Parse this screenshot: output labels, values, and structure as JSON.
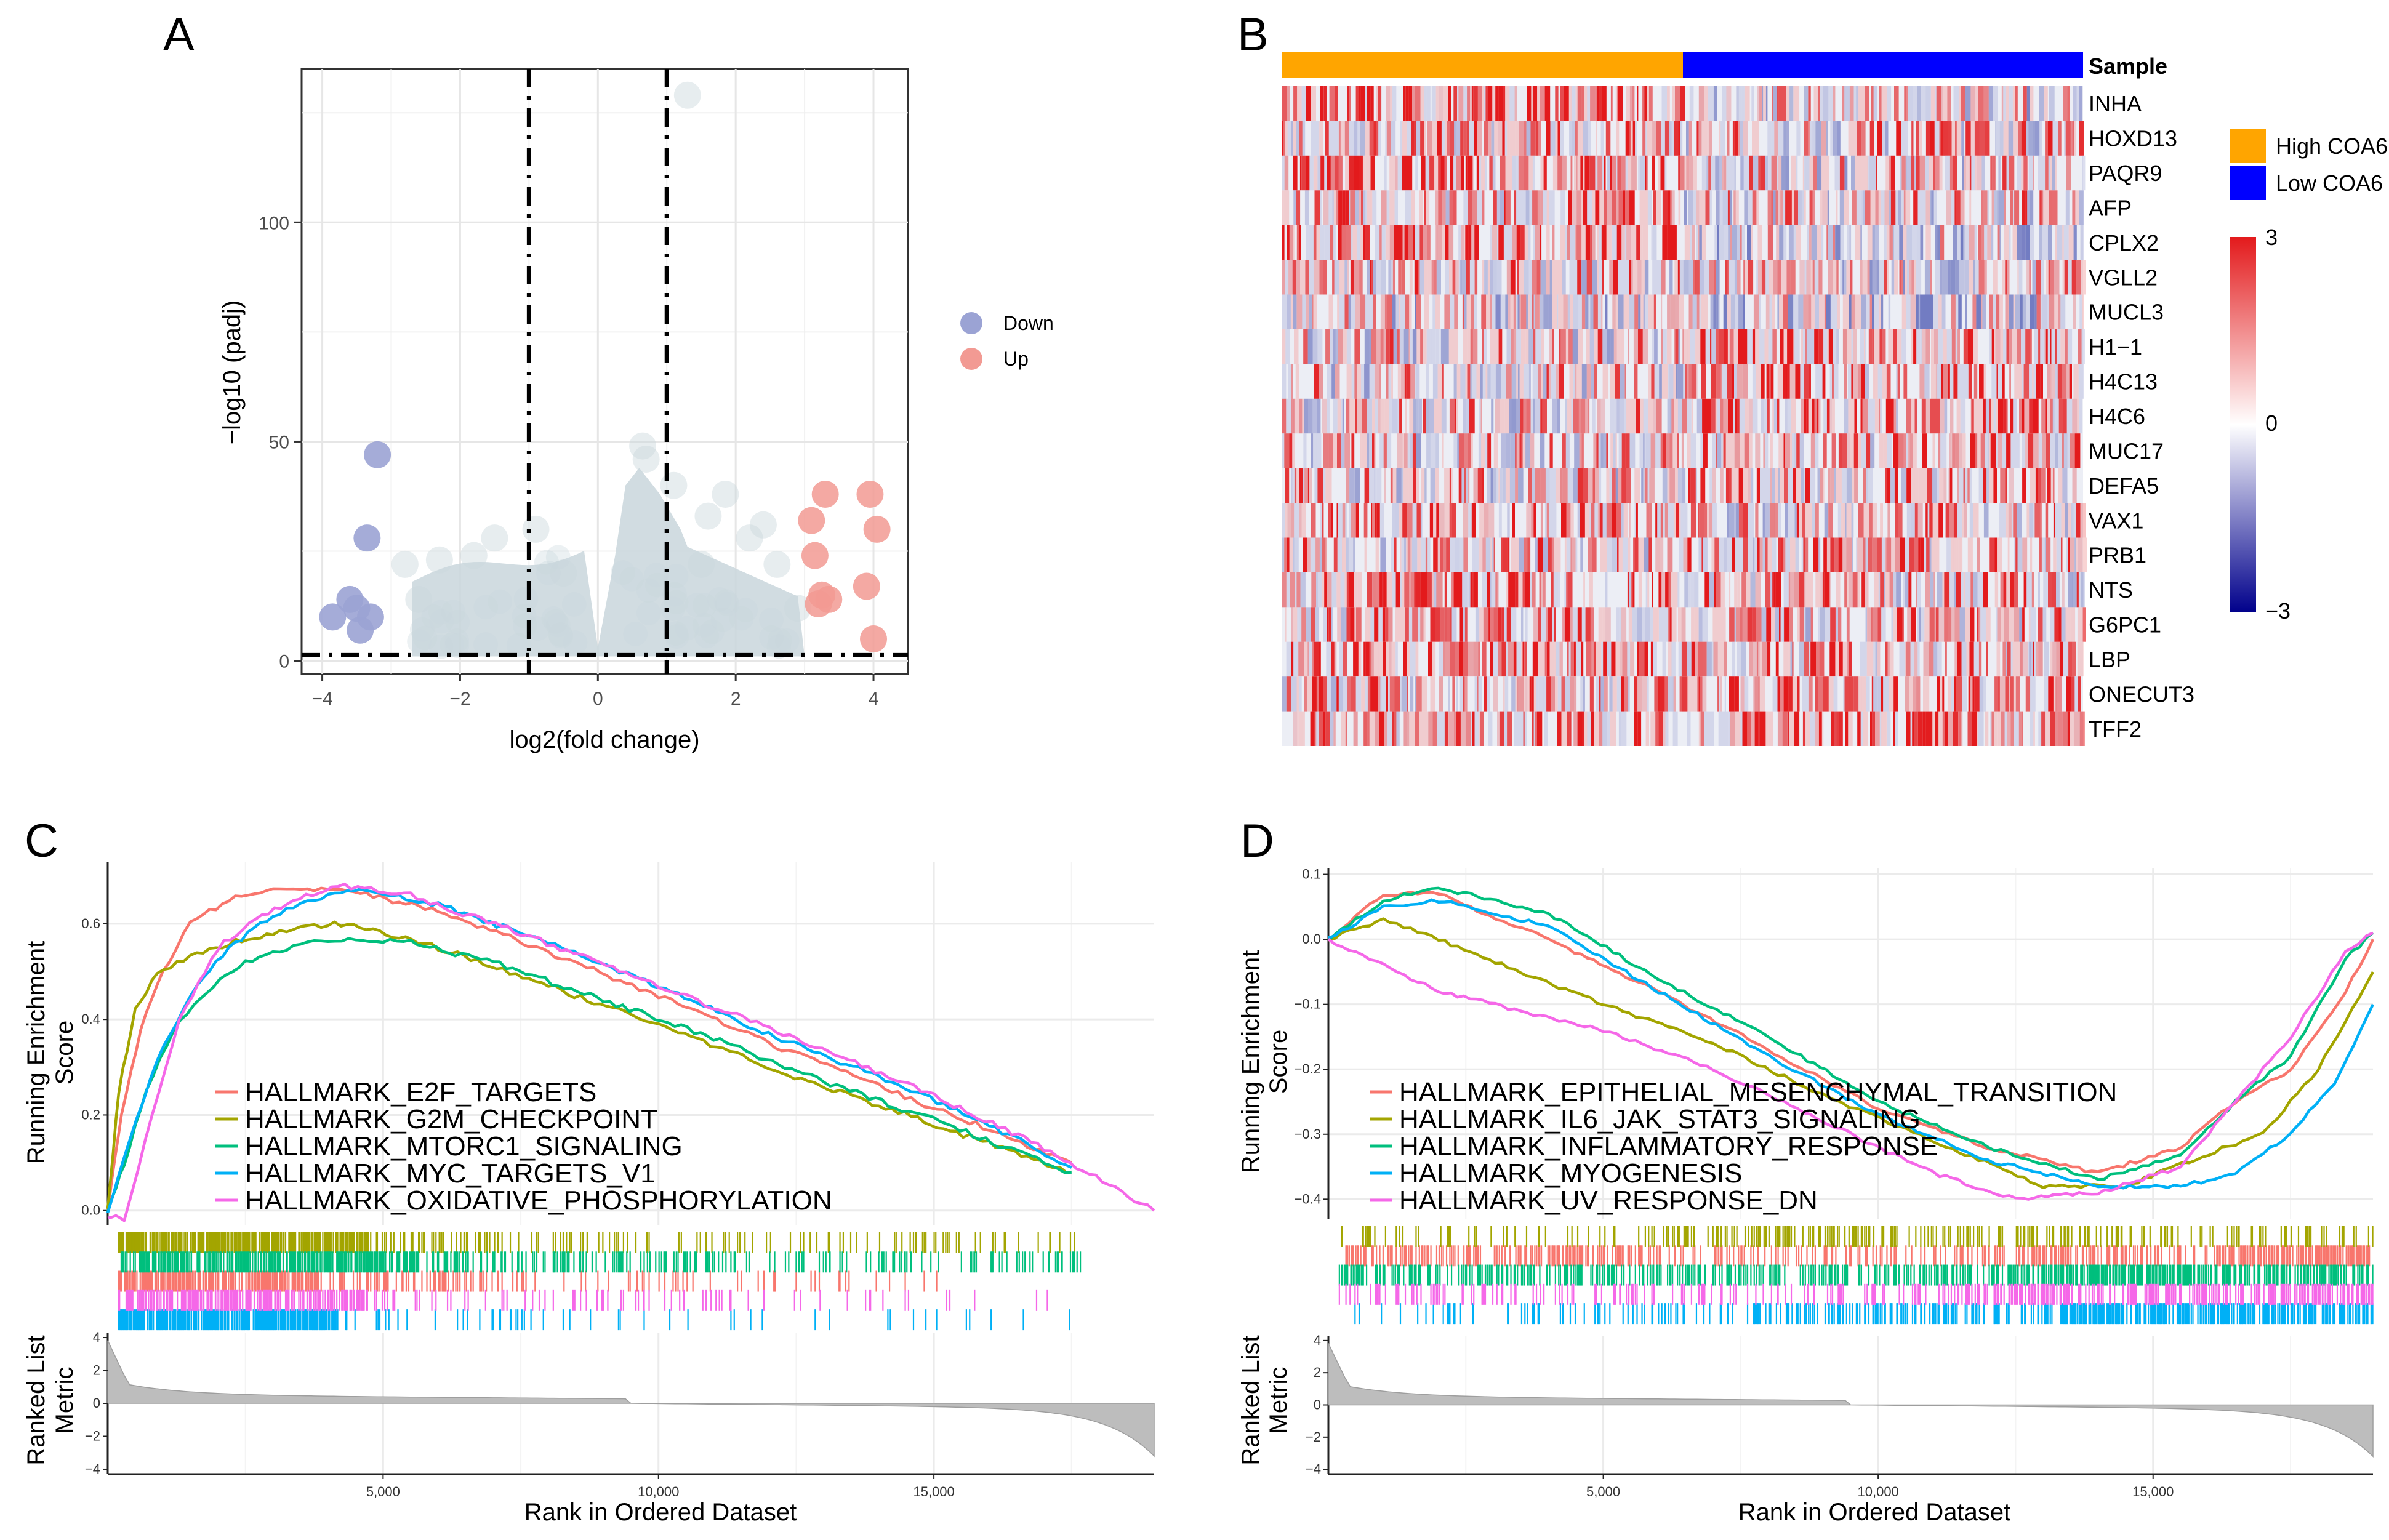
{
  "panels": {
    "a": "A",
    "b": "B",
    "c": "C",
    "d": "D"
  },
  "colors": {
    "down": "#9ba3d4",
    "up": "#f29a93",
    "cloud": "#c9d6dc",
    "high": "#ffa500",
    "low": "#0000ff",
    "heat_hi": "#e31a1c",
    "heat_mid": "#eceef5",
    "heat_lo": "#00008b",
    "e2f": "#f8766d",
    "g2m": "#a3a500",
    "mtorc1": "#00bf7d",
    "myc": "#00b0f6",
    "oxphos": "#f568e8"
  },
  "chart_data": [
    {
      "type": "scatter",
      "id": "volcano",
      "xlabel": "log2(fold change)",
      "ylabel": "−log10 (padj)",
      "xlim": [
        -4.3,
        4.5
      ],
      "ylim": [
        -3,
        135
      ],
      "x_ticks": [
        -4,
        -2,
        0,
        2,
        4
      ],
      "x_tick_labels": [
        "−4",
        "−2",
        "0",
        "2",
        "4"
      ],
      "y_ticks": [
        0,
        50,
        100
      ],
      "y_tick_labels": [
        "0",
        "50",
        "100"
      ],
      "thresholds": {
        "x": [
          -1,
          1
        ],
        "y": 1.3
      },
      "legend": [
        {
          "label": "Down",
          "color": "#9ba3d4"
        },
        {
          "label": "Up",
          "color": "#f29a93"
        }
      ],
      "down_points": [
        {
          "x": -3.2,
          "y": 47
        },
        {
          "x": -3.35,
          "y": 28
        },
        {
          "x": -3.6,
          "y": 14
        },
        {
          "x": -3.5,
          "y": 12
        },
        {
          "x": -3.85,
          "y": 10
        },
        {
          "x": -3.3,
          "y": 10
        },
        {
          "x": -3.45,
          "y": 7
        }
      ],
      "up_points": [
        {
          "x": 3.3,
          "y": 38
        },
        {
          "x": 3.95,
          "y": 38
        },
        {
          "x": 3.1,
          "y": 32
        },
        {
          "x": 4.05,
          "y": 30
        },
        {
          "x": 3.15,
          "y": 24
        },
        {
          "x": 3.9,
          "y": 17
        },
        {
          "x": 3.25,
          "y": 15
        },
        {
          "x": 3.35,
          "y": 14
        },
        {
          "x": 3.2,
          "y": 13
        },
        {
          "x": 4.0,
          "y": 5
        }
      ],
      "ns_points": [
        {
          "x": 1.3,
          "y": 129
        },
        {
          "x": 0.65,
          "y": 49
        },
        {
          "x": 0.7,
          "y": 46
        },
        {
          "x": -2.3,
          "y": 23
        },
        {
          "x": -1.5,
          "y": 28
        },
        {
          "x": -0.9,
          "y": 30
        },
        {
          "x": 1.6,
          "y": 33
        },
        {
          "x": 2.2,
          "y": 28
        },
        {
          "x": 1.85,
          "y": 38
        },
        {
          "x": 2.6,
          "y": 22
        },
        {
          "x": -2.6,
          "y": 14
        },
        {
          "x": -2.8,
          "y": 22
        },
        {
          "x": 2.9,
          "y": 12
        },
        {
          "x": 1.1,
          "y": 40
        },
        {
          "x": -0.5,
          "y": 20
        },
        {
          "x": 2.4,
          "y": 31
        },
        {
          "x": -1.8,
          "y": 24
        },
        {
          "x": 1.5,
          "y": 22
        }
      ]
    },
    {
      "type": "heatmap",
      "id": "heatmap",
      "annotation_title": "Sample",
      "genes": [
        "INHA",
        "HOXD13",
        "PAQR9",
        "AFP",
        "CPLX2",
        "VGLL2",
        "MUCL3",
        "H1−1",
        "H4C13",
        "H4C6",
        "MUC17",
        "DEFA5",
        "VAX1",
        "PRB1",
        "NTS",
        "G6PC1",
        "LBP",
        "ONECUT3",
        "TFF2"
      ],
      "groups": [
        {
          "label": "High COA6",
          "color": "#ffa500",
          "fraction": 0.5
        },
        {
          "label": "Low COA6",
          "color": "#0000ff",
          "fraction": 0.5
        }
      ],
      "scale": {
        "min": -3,
        "mid": 0,
        "max": 3,
        "labels": [
          "3",
          "0",
          "−3"
        ]
      }
    },
    {
      "type": "line",
      "id": "gsea-c",
      "xlabel": "Rank in Ordered Dataset",
      "ylabel_top": [
        "Running Enrichment",
        "Score"
      ],
      "ylabel_bottom": [
        "Ranked List",
        "Metric"
      ],
      "x_max": 19000,
      "x_ticks": [
        5000,
        10000,
        15000
      ],
      "x_tick_labels": [
        "5,000",
        "10,000",
        "15,000"
      ],
      "ylim": [
        -0.03,
        0.73
      ],
      "y_ticks": [
        0.0,
        0.2,
        0.4,
        0.6
      ],
      "y_tick_labels": [
        "0.0",
        "0.2",
        "0.4",
        "0.6"
      ],
      "metric_ticks": [
        4,
        2,
        0,
        -2,
        -4
      ],
      "metric_tick_labels": [
        "4",
        "2",
        "0",
        "−2",
        "−4"
      ],
      "series": [
        {
          "name": "HALLMARK_E2F_TARGETS",
          "color": "#f8766d",
          "x": [
            0,
            250,
            600,
            1000,
            1500,
            2200,
            3000,
            4000,
            4700,
            6000,
            8000,
            10000,
            12000,
            14000,
            16000,
            17500
          ],
          "y": [
            0.0,
            0.2,
            0.38,
            0.5,
            0.6,
            0.65,
            0.67,
            0.67,
            0.66,
            0.63,
            0.54,
            0.45,
            0.35,
            0.26,
            0.17,
            0.1
          ]
        },
        {
          "name": "HALLMARK_G2M_CHECKPOINT",
          "color": "#a3a500",
          "x": [
            0,
            200,
            500,
            900,
            1500,
            2200,
            3000,
            4000,
            4700,
            6000,
            8000,
            10000,
            12000,
            14000,
            16000,
            17400
          ],
          "y": [
            0.0,
            0.25,
            0.42,
            0.5,
            0.53,
            0.56,
            0.58,
            0.6,
            0.59,
            0.55,
            0.47,
            0.39,
            0.3,
            0.22,
            0.14,
            0.08
          ]
        },
        {
          "name": "HALLMARK_MTORC1_SIGNALING",
          "color": "#00bf7d",
          "x": [
            0,
            300,
            700,
            1200,
            1800,
            2500,
            3500,
            4500,
            5500,
            7000,
            9000,
            11000,
            13000,
            15000,
            17000,
            17500
          ],
          "y": [
            0.0,
            0.1,
            0.25,
            0.38,
            0.46,
            0.52,
            0.56,
            0.57,
            0.56,
            0.52,
            0.44,
            0.36,
            0.27,
            0.19,
            0.1,
            0.08
          ]
        },
        {
          "name": "HALLMARK_MYC_TARGETS_V1",
          "color": "#00b0f6",
          "x": [
            0,
            400,
            900,
            1500,
            2200,
            3000,
            4000,
            4700,
            6000,
            8000,
            10000,
            12000,
            14000,
            16000,
            17500
          ],
          "y": [
            0.0,
            0.15,
            0.32,
            0.45,
            0.55,
            0.62,
            0.66,
            0.67,
            0.64,
            0.56,
            0.47,
            0.37,
            0.28,
            0.18,
            0.09
          ]
        },
        {
          "name": "HALLMARK_OXIDATIVE_PHOSPHORYLATION",
          "color": "#f568e8",
          "x": [
            0,
            300,
            800,
            1300,
            2000,
            2800,
            3600,
            4300,
            5500,
            7500,
            10000,
            12500,
            15000,
            17000,
            19000
          ],
          "y": [
            -0.01,
            -0.02,
            0.2,
            0.4,
            0.55,
            0.62,
            0.66,
            0.68,
            0.66,
            0.58,
            0.47,
            0.36,
            0.24,
            0.13,
            0.0
          ]
        }
      ]
    },
    {
      "type": "line",
      "id": "gsea-d",
      "xlabel": "Rank in Ordered Dataset",
      "ylabel_top": [
        "Running Enrichment",
        "Score"
      ],
      "ylabel_bottom": [
        "Ranked List",
        "Metric"
      ],
      "x_max": 19000,
      "x_ticks": [
        5000,
        10000,
        15000
      ],
      "x_tick_labels": [
        "5,000",
        "10,000",
        "15,000"
      ],
      "ylim": [
        -0.43,
        0.11
      ],
      "y_ticks": [
        0.1,
        0.0,
        -0.1,
        -0.2,
        -0.3,
        -0.4
      ],
      "y_tick_labels": [
        "0.1",
        "0.0",
        "−0.1",
        "−0.2",
        "−0.3",
        "−0.4"
      ],
      "metric_ticks": [
        4,
        2,
        0,
        -2,
        -4
      ],
      "metric_tick_labels": [
        "4",
        "2",
        "0",
        "−2",
        "−4"
      ],
      "series": [
        {
          "name": "HALLMARK_EPITHELIAL_MESENCHYMAL_TRANSITION",
          "color": "#f8766d",
          "x": [
            0,
            1000,
            2000,
            4000,
            6000,
            8000,
            10000,
            12000,
            14000,
            15500,
            16500,
            17500,
            18500,
            19000
          ],
          "y": [
            0.0,
            0.07,
            0.07,
            0.0,
            -0.08,
            -0.17,
            -0.26,
            -0.32,
            -0.36,
            -0.32,
            -0.25,
            -0.2,
            -0.08,
            0.0
          ]
        },
        {
          "name": "HALLMARK_IL6_JAK_STAT3_SIGNALING",
          "color": "#a3a500",
          "x": [
            0,
            1000,
            2000,
            3500,
            5000,
            7000,
            9000,
            11000,
            13000,
            14500,
            16000,
            17000,
            18000,
            19000
          ],
          "y": [
            0.0,
            0.03,
            0.0,
            -0.05,
            -0.1,
            -0.16,
            -0.24,
            -0.31,
            -0.38,
            -0.38,
            -0.33,
            -0.3,
            -0.2,
            -0.05
          ]
        },
        {
          "name": "HALLMARK_INFLAMMATORY_RESPONSE",
          "color": "#00bf7d",
          "x": [
            0,
            1000,
            2000,
            4000,
            6000,
            8000,
            10000,
            12000,
            14000,
            15500,
            16500,
            17500,
            18500,
            19000
          ],
          "y": [
            0.0,
            0.06,
            0.08,
            0.04,
            -0.06,
            -0.15,
            -0.25,
            -0.32,
            -0.37,
            -0.33,
            -0.25,
            -0.18,
            -0.03,
            0.01
          ]
        },
        {
          "name": "HALLMARK_MYOGENESIS",
          "color": "#00b0f6",
          "x": [
            0,
            1000,
            2000,
            4000,
            6000,
            8000,
            10000,
            12000,
            14000,
            15500,
            16500,
            17500,
            18300,
            19000
          ],
          "y": [
            0.0,
            0.05,
            0.06,
            0.02,
            -0.08,
            -0.18,
            -0.27,
            -0.34,
            -0.38,
            -0.38,
            -0.36,
            -0.3,
            -0.22,
            -0.1
          ]
        },
        {
          "name": "HALLMARK_UV_RESPONSE_DN",
          "color": "#f568e8",
          "x": [
            0,
            1000,
            2000,
            3500,
            5000,
            7000,
            9000,
            11000,
            12500,
            14000,
            15500,
            16500,
            17500,
            18500,
            19000
          ],
          "y": [
            0.0,
            -0.04,
            -0.08,
            -0.11,
            -0.14,
            -0.2,
            -0.28,
            -0.36,
            -0.4,
            -0.39,
            -0.35,
            -0.25,
            -0.15,
            -0.02,
            0.01
          ]
        }
      ]
    }
  ]
}
